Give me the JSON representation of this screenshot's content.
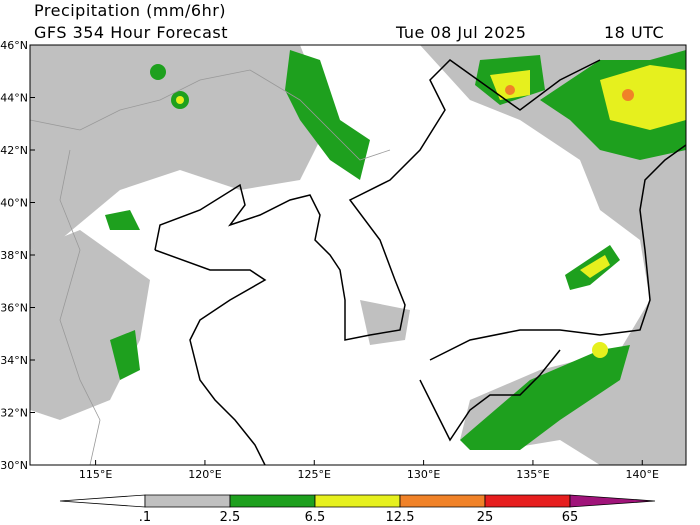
{
  "header": {
    "title": "Precipitation (mm/6hr)",
    "subtitle": "GFS 354 Hour Forecast",
    "date": "Tue 08 Jul 2025",
    "time": "18 UTC"
  },
  "map": {
    "xlim": [
      112,
      142
    ],
    "ylim": [
      30,
      46
    ],
    "xticks": [
      {
        "value": 115,
        "label": "115°E"
      },
      {
        "value": 120,
        "label": "120°E"
      },
      {
        "value": 125,
        "label": "125°E"
      },
      {
        "value": 130,
        "label": "130°E"
      },
      {
        "value": 135,
        "label": "135°E"
      },
      {
        "value": 140,
        "label": "140°E"
      }
    ],
    "yticks": [
      {
        "value": 30,
        "label": "30°N"
      },
      {
        "value": 32,
        "label": "32°N"
      },
      {
        "value": 34,
        "label": "34°N"
      },
      {
        "value": 36,
        "label": "36°N"
      },
      {
        "value": 38,
        "label": "38°N"
      },
      {
        "value": 40,
        "label": "40°N"
      },
      {
        "value": 42,
        "label": "42°N"
      },
      {
        "value": 44,
        "label": "44°N"
      },
      {
        "value": 46,
        "label": "46°N"
      }
    ]
  },
  "colorbar": {
    "levels": [
      {
        "value": 0.1,
        "label": ".1"
      },
      2.5,
      6.5,
      12.5,
      25,
      65
    ],
    "colors": [
      "#ffffff",
      "#c0c0c0",
      "#1ea01e",
      "#e6f01e",
      "#f08228",
      "#e61e1e",
      "#a0147a"
    ]
  }
}
